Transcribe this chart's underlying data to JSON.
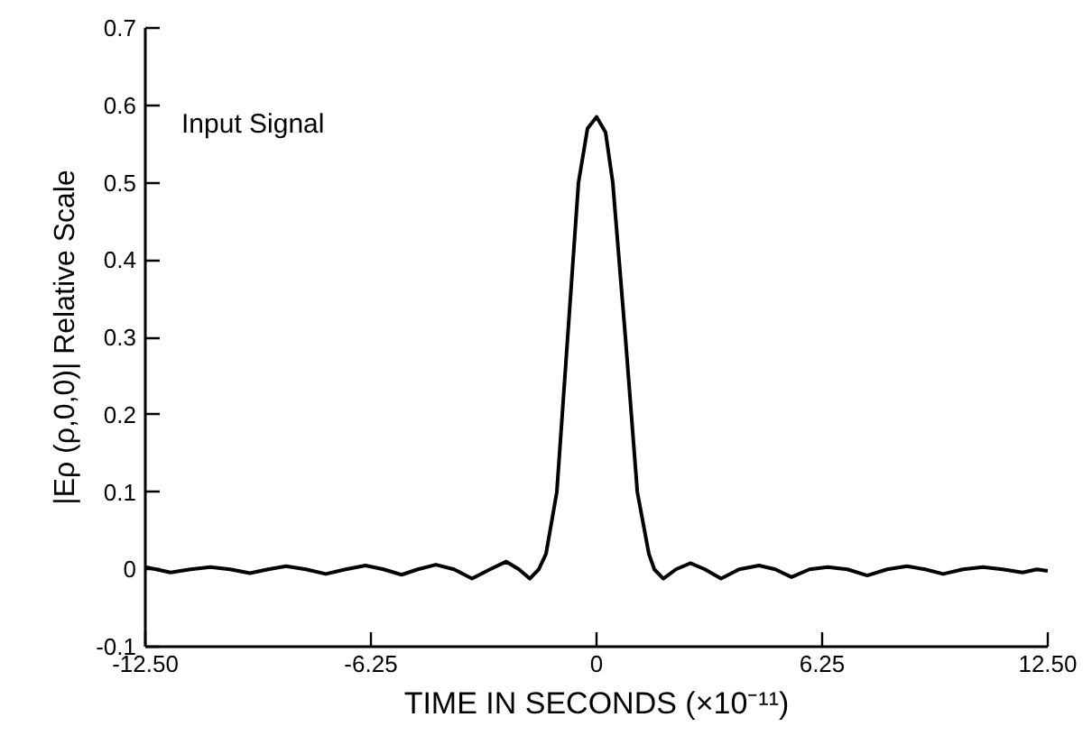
{
  "chart_data": {
    "type": "line",
    "xlabel": "TIME IN SECONDS (×10⁻¹¹)",
    "ylabel": "|Eρ (ρ,0,0)| Relative Scale",
    "annotations": [
      "Input Signal"
    ],
    "xlim": [
      -12.5,
      12.5
    ],
    "ylim": [
      -0.1,
      0.7
    ],
    "xticks": [
      {
        "value": -12.5,
        "label": "-12.50"
      },
      {
        "value": -6.25,
        "label": "-6.25"
      },
      0,
      6.25,
      {
        "value": 12.5,
        "label": "12.50"
      }
    ],
    "yticks": [
      -0.1,
      0,
      0.1,
      0.2,
      0.3,
      0.4,
      0.5,
      0.6,
      0.7
    ],
    "grid": false,
    "marker": "none",
    "line_style": "solid",
    "series": [
      {
        "color": "#000000",
        "x": [
          -12.5,
          -12.2,
          -11.8,
          -11.25,
          -10.7,
          -10.15,
          -9.6,
          -9.1,
          -8.6,
          -8.05,
          -7.5,
          -6.95,
          -6.4,
          -5.9,
          -5.4,
          -4.95,
          -4.45,
          -3.95,
          -3.45,
          -2.95,
          -2.5,
          -2.15,
          -1.85,
          -1.6,
          -1.4,
          -1.1,
          -0.8,
          -0.5,
          -0.25,
          0,
          0.25,
          0.45,
          0.8,
          1.13,
          1.45,
          1.6,
          1.85,
          2.2,
          2.6,
          3.0,
          3.45,
          3.95,
          4.5,
          4.95,
          5.4,
          5.9,
          6.4,
          6.95,
          7.5,
          8.05,
          8.6,
          9.1,
          9.6,
          10.15,
          10.7,
          11.25,
          11.8,
          12.2,
          12.5
        ],
        "values": [
          0.003,
          0.0,
          -0.004,
          0.0,
          0.003,
          0.0,
          -0.005,
          0.0,
          0.004,
          0.0,
          -0.006,
          0.0,
          0.005,
          0.0,
          -0.007,
          0.0,
          0.006,
          0.0,
          -0.012,
          0.0,
          0.01,
          0.0,
          -0.012,
          0.0,
          0.02,
          0.1,
          0.3,
          0.5,
          0.57,
          0.585,
          0.565,
          0.5,
          0.3,
          0.1,
          0.02,
          0.0,
          -0.012,
          0.0,
          0.008,
          0.0,
          -0.012,
          0.0,
          0.005,
          0.0,
          -0.01,
          0.0,
          0.003,
          0.0,
          -0.008,
          0.0,
          0.004,
          0.0,
          -0.006,
          0.0,
          0.003,
          0.0,
          -0.004,
          0.0,
          -0.002
        ]
      }
    ]
  }
}
